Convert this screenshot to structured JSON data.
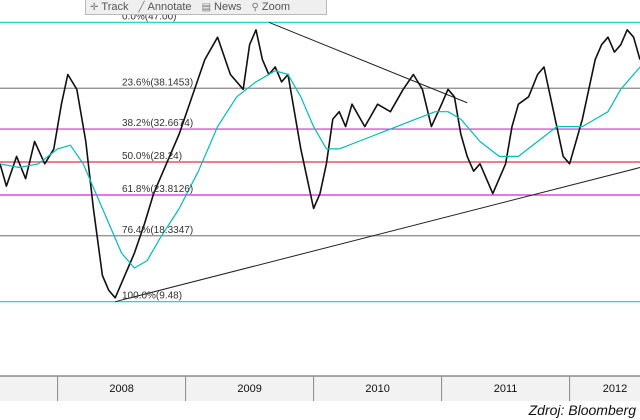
{
  "toolbar": {
    "items": [
      {
        "label": "Track",
        "icon": "crosshair-icon"
      },
      {
        "label": "Annotate",
        "icon": "pen-icon"
      },
      {
        "label": "News",
        "icon": "news-icon"
      },
      {
        "label": "Zoom",
        "icon": "magnifier-icon"
      }
    ]
  },
  "source": "Zdroj: Bloomberg",
  "chart_data": {
    "type": "line",
    "title": "",
    "x_labels": [
      "2008",
      "2009",
      "2010",
      "2011",
      "2012"
    ],
    "xlim": [
      2007.55,
      2012.55
    ],
    "ylim": [
      -0.5,
      50
    ],
    "grid": false,
    "fibonacci_levels": [
      {
        "label": "0.0%(47.00)",
        "value": 47.0,
        "color": "#00d2d2"
      },
      {
        "label": "23.6%(38.1453)",
        "value": 38.1453,
        "color": "#888888"
      },
      {
        "label": "38.2%(32.6674)",
        "value": 32.6674,
        "color": "#d22bd2"
      },
      {
        "label": "50.0%(28.24)",
        "value": 28.24,
        "color": "#e0304a"
      },
      {
        "label": "61.8%(23.8126)",
        "value": 23.8126,
        "color": "#d22bd2"
      },
      {
        "label": "76.4%(18.3347)",
        "value": 18.3347,
        "color": "#888888"
      },
      {
        "label": "100.0%(9.48)",
        "value": 9.48,
        "color": "#00d2d2"
      }
    ],
    "trendlines": [
      {
        "from": [
          2008.45,
          9.48
        ],
        "to": [
          2012.55,
          27.5
        ]
      },
      {
        "from": [
          2009.65,
          47.0
        ],
        "to": [
          2011.2,
          36.2
        ]
      }
    ],
    "series": [
      {
        "color": "#111111",
        "x": [
          2007.55,
          2007.6,
          2007.68,
          2007.75,
          2007.82,
          2007.9,
          2007.97,
          2008.03,
          2008.08,
          2008.15,
          2008.22,
          2008.28,
          2008.35,
          2008.4,
          2008.45,
          2008.5,
          2008.55,
          2008.6,
          2008.68,
          2008.75,
          2008.85,
          2008.95,
          2009.05,
          2009.15,
          2009.25,
          2009.35,
          2009.45,
          2009.5,
          2009.55,
          2009.6,
          2009.65,
          2009.7,
          2009.75,
          2009.8,
          2009.85,
          2009.9,
          2009.95,
          2010.0,
          2010.05,
          2010.1,
          2010.15,
          2010.2,
          2010.25,
          2010.3,
          2010.4,
          2010.5,
          2010.6,
          2010.7,
          2010.78,
          2010.85,
          2010.92,
          2011.0,
          2011.05,
          2011.1,
          2011.15,
          2011.2,
          2011.25,
          2011.3,
          2011.35,
          2011.4,
          2011.45,
          2011.5,
          2011.55,
          2011.6,
          2011.68,
          2011.75,
          2011.8,
          2011.85,
          2011.9,
          2011.95,
          2012.0,
          2012.05,
          2012.1,
          2012.15,
          2012.2,
          2012.25,
          2012.3,
          2012.35,
          2012.4,
          2012.45,
          2012.5,
          2012.55
        ],
        "values": [
          28,
          25,
          29,
          26,
          31,
          28,
          30,
          36,
          40,
          38,
          31,
          22,
          13,
          11,
          10,
          12,
          14,
          16,
          20,
          24,
          28,
          32,
          37,
          42,
          45,
          40,
          38,
          44,
          46,
          42,
          40,
          41,
          39,
          40,
          35,
          30,
          26,
          22,
          24,
          28,
          34,
          35,
          33,
          36,
          33,
          36,
          35,
          38,
          40,
          38,
          33,
          36,
          38,
          37,
          32,
          29,
          27,
          28,
          26,
          24,
          26,
          28,
          33,
          36,
          37,
          40,
          41,
          37,
          33,
          29,
          28,
          31,
          34,
          38,
          42,
          44,
          45,
          43,
          44,
          46,
          45,
          42
        ]
      },
      {
        "color": "#00bcbc",
        "x": [
          2007.55,
          2007.7,
          2007.85,
          2008.0,
          2008.1,
          2008.2,
          2008.3,
          2008.4,
          2008.5,
          2008.6,
          2008.7,
          2008.8,
          2008.95,
          2009.1,
          2009.25,
          2009.4,
          2009.55,
          2009.7,
          2009.8,
          2009.9,
          2010.0,
          2010.1,
          2010.2,
          2010.35,
          2010.5,
          2010.65,
          2010.8,
          2010.95,
          2011.05,
          2011.15,
          2011.3,
          2011.45,
          2011.6,
          2011.75,
          2011.9,
          2012.0,
          2012.1,
          2012.2,
          2012.3,
          2012.4,
          2012.55
        ],
        "values": [
          28,
          27.5,
          28,
          30,
          30.5,
          28,
          24,
          20,
          16,
          14,
          15,
          18,
          22,
          27,
          33,
          37,
          39,
          40.5,
          40,
          37,
          33,
          30,
          30,
          31,
          32,
          33,
          34,
          35,
          35,
          34,
          31,
          29,
          29,
          31,
          33,
          33,
          33,
          34,
          35,
          38,
          41
        ]
      }
    ]
  }
}
